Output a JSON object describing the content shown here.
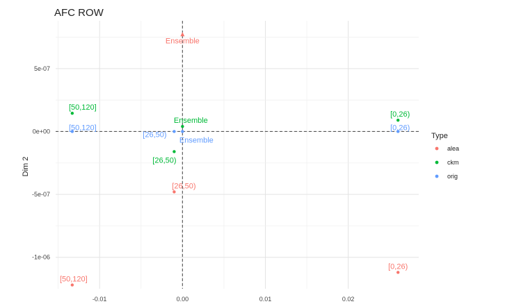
{
  "chart_data": {
    "type": "scatter",
    "title": "AFC ROW",
    "xlabel": "",
    "ylabel": "Dim 2",
    "xlim": [
      -0.0153,
      0.0285
    ],
    "ylim": [
      -1.25e-06,
      8.8e-07
    ],
    "x_ticks": [
      -0.01,
      0.0,
      0.01,
      0.02
    ],
    "x_tick_labels": [
      "-0.01",
      "0.00",
      "0.01",
      "0.02"
    ],
    "y_ticks": [
      5e-07,
      0,
      -5e-07,
      -1e-06
    ],
    "y_tick_labels": [
      "5e-07",
      "0e+00",
      "-5e-07",
      "-1e-06"
    ],
    "grid": true,
    "reference_lines": {
      "x": 0,
      "y": 0,
      "style": "dashed"
    },
    "legend": {
      "title": "Type",
      "position": "right",
      "entries": [
        {
          "name": "alea",
          "color": "#F8766D"
        },
        {
          "name": "ckm",
          "color": "#00BA38"
        },
        {
          "name": "orig",
          "color": "#619CFF"
        }
      ]
    },
    "series": [
      {
        "name": "alea",
        "color": "#F8766D",
        "points": [
          {
            "label": "Ensemble",
            "x": 0.0,
            "y": 7.9e-07,
            "arrow": true
          },
          {
            "label": "[26,50)",
            "x": -0.001,
            "y": -4.8e-07
          },
          {
            "label": "[50,120]",
            "x": -0.0133,
            "y": -1.22e-06
          },
          {
            "label": "[0,26)",
            "x": 0.026,
            "y": -1.12e-06
          }
        ]
      },
      {
        "name": "ckm",
        "color": "#00BA38",
        "points": [
          {
            "label": "Ensemble",
            "x": 0.0,
            "y": 4e-08
          },
          {
            "label": "[26,50)",
            "x": -0.001,
            "y": -1.6e-07
          },
          {
            "label": "[50,120]",
            "x": -0.0133,
            "y": 1.45e-07
          },
          {
            "label": "[0,26)",
            "x": 0.026,
            "y": 9e-08
          }
        ]
      },
      {
        "name": "orig",
        "color": "#619CFF",
        "points": [
          {
            "label": "Ensemble",
            "x": 0.0,
            "y": 0.0
          },
          {
            "label": "[26,50)",
            "x": -0.001,
            "y": 0.0
          },
          {
            "label": "[50,120]",
            "x": -0.0133,
            "y": 0.0
          },
          {
            "label": "[0,26)",
            "x": 0.026,
            "y": 0.0
          }
        ]
      }
    ]
  }
}
